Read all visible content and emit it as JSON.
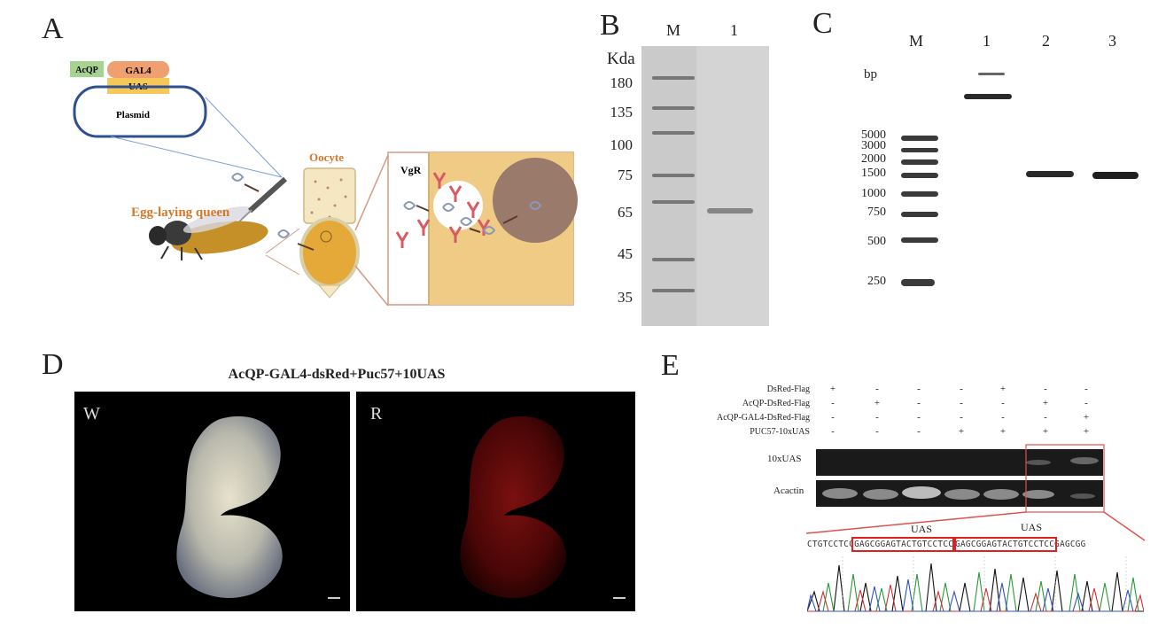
{
  "panels": {
    "A": {
      "letter": "A",
      "acqp": "AcQP",
      "gal4": "GAL4",
      "uas": "UAS",
      "plasmid": "Plasmid",
      "oocyte": "Oocyte",
      "queen": "Egg-laying queen",
      "vgr": "VgR"
    },
    "B": {
      "letter": "B",
      "lanes": [
        "M",
        "1"
      ],
      "unit": "Kda",
      "markers": [
        "180",
        "135",
        "100",
        "75",
        "65",
        "45",
        "35"
      ]
    },
    "C": {
      "letter": "C",
      "lanes": [
        "M",
        "1",
        "2",
        "3"
      ],
      "unit": "bp",
      "markers": [
        "5000",
        "3000",
        "2000",
        "1500",
        "1000",
        "750",
        "500",
        "250"
      ]
    },
    "D": {
      "letter": "D",
      "title": "AcQP-GAL4-dsRed+Puc57+10UAS",
      "left_label": "W",
      "right_label": "R"
    },
    "E": {
      "letter": "E",
      "rows": [
        {
          "name": "DsRed-Flag",
          "marks": [
            "+",
            "-",
            "-",
            "-",
            "+",
            "-",
            "-"
          ]
        },
        {
          "name": "AcQP-DsRed-Flag",
          "marks": [
            "-",
            "+",
            "-",
            "-",
            "-",
            "+",
            "-"
          ]
        },
        {
          "name": "AcQP-GAL4-DsRed-Flag",
          "marks": [
            "-",
            "-",
            "-",
            "-",
            "-",
            "-",
            "+"
          ]
        },
        {
          "name": "PUC57-10xUAS",
          "marks": [
            "-",
            "-",
            "-",
            "+",
            "+",
            "+",
            "+"
          ]
        }
      ],
      "gel_rows": [
        "10xUAS",
        "Acactin"
      ],
      "uas_left": "UAS",
      "uas_right": "UAS",
      "sequence_pre": "CTGTCCTCC",
      "sequence_box1": "GAGCGGAGTACTGTCCTCC",
      "sequence_box2": "GAGCGGAGTACTGTCCTCC",
      "sequence_post": "GAGCGG"
    }
  }
}
